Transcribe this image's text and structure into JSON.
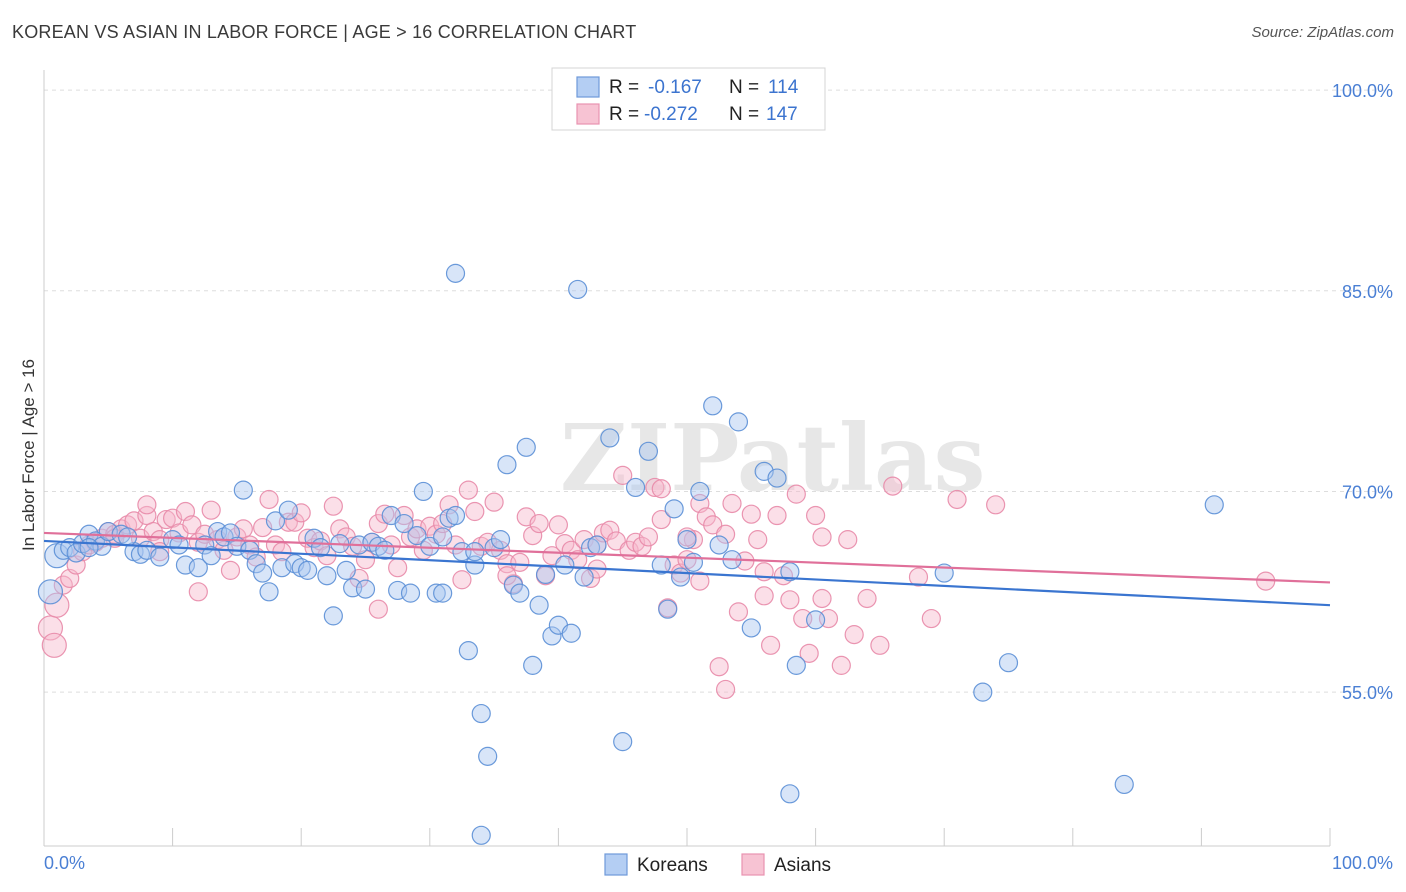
{
  "title": "KOREAN VS ASIAN IN LABOR FORCE | AGE > 16 CORRELATION CHART",
  "source": "Source: ZipAtlas.com",
  "watermark": "ZIPatlas",
  "colors": {
    "koreans_fill": "#a8c6ef",
    "koreans_stroke": "#5b8fd6",
    "koreans_line": "#3a75d0",
    "asians_fill": "#f6b8cb",
    "asians_stroke": "#e88aa8",
    "asians_line": "#e0709a",
    "axis_text": "#4a7fd4",
    "grid": "#dddddd"
  },
  "legend": {
    "rows": [
      {
        "r_label": "R =",
        "r_value": "-0.167",
        "n_label": "N =",
        "n_value": "114"
      },
      {
        "r_label": "R =",
        "r_value": "-0.272",
        "n_label": "N =",
        "n_value": "147"
      }
    ]
  },
  "bottom_legend": [
    "Koreans",
    "Asians"
  ],
  "chart_data": {
    "type": "scatter",
    "ylabel": "In Labor Force | Age > 16",
    "xlim": [
      0,
      100
    ],
    "ylim": [
      43.5,
      101.5
    ],
    "x_tick_labels": [
      "0.0%",
      "100.0%"
    ],
    "y_ticks": [
      55,
      70,
      85,
      100
    ],
    "y_tick_labels": [
      "55.0%",
      "70.0%",
      "85.0%",
      "100.0%"
    ],
    "grid": "horizontal dashed",
    "series": [
      {
        "name": "Koreans",
        "trend": {
          "x": [
            0,
            100
          ],
          "y": [
            66.3,
            61.5
          ]
        },
        "points": [
          [
            1,
            65.2
          ],
          [
            1.5,
            65.6
          ],
          [
            2,
            65.8
          ],
          [
            2.5,
            65.4
          ],
          [
            3,
            66.1
          ],
          [
            3.5,
            66.8
          ],
          [
            4,
            66.3
          ],
          [
            4.5,
            65.9
          ],
          [
            5,
            67
          ],
          [
            6,
            66.8
          ],
          [
            7,
            65.5
          ],
          [
            7.5,
            65.3
          ],
          [
            8,
            65.6
          ],
          [
            9,
            65.1
          ],
          [
            10,
            66.4
          ],
          [
            10.5,
            66
          ],
          [
            11,
            64.5
          ],
          [
            12,
            64.3
          ],
          [
            12.5,
            66
          ],
          [
            13,
            65.2
          ],
          [
            13.5,
            67
          ],
          [
            14,
            66.6
          ],
          [
            14.5,
            66.9
          ],
          [
            15,
            65.9
          ],
          [
            15.5,
            70.1
          ],
          [
            16,
            65.6
          ],
          [
            16.5,
            64.6
          ],
          [
            17,
            63.9
          ],
          [
            17.5,
            62.5
          ],
          [
            18,
            67.8
          ],
          [
            18.5,
            64.3
          ],
          [
            19,
            68.6
          ],
          [
            19.5,
            64.6
          ],
          [
            20,
            64.3
          ],
          [
            20.5,
            64.1
          ],
          [
            21,
            66.5
          ],
          [
            21.5,
            65.8
          ],
          [
            22,
            63.7
          ],
          [
            22.5,
            60.7
          ],
          [
            23,
            66.1
          ],
          [
            23.5,
            64.1
          ],
          [
            24,
            62.8
          ],
          [
            24.5,
            66
          ],
          [
            25,
            62.7
          ],
          [
            25.5,
            66.2
          ],
          [
            26,
            65.9
          ],
          [
            26.5,
            65.6
          ],
          [
            27,
            68.2
          ],
          [
            27.5,
            62.6
          ],
          [
            28,
            67.6
          ],
          [
            28.5,
            62.4
          ],
          [
            29,
            66.7
          ],
          [
            29.5,
            70
          ],
          [
            30,
            65.9
          ],
          [
            30.5,
            62.4
          ],
          [
            31,
            66.6
          ],
          [
            31.5,
            68
          ],
          [
            32,
            68.2
          ],
          [
            32.5,
            65.5
          ],
          [
            33,
            58.1
          ],
          [
            33.5,
            64.5
          ],
          [
            34,
            53.4
          ],
          [
            34.5,
            50.2
          ],
          [
            35,
            65.8
          ],
          [
            35.5,
            66.4
          ],
          [
            36,
            72
          ],
          [
            36.5,
            63
          ],
          [
            37,
            62.4
          ],
          [
            37.5,
            73.3
          ],
          [
            38,
            57
          ],
          [
            38.5,
            61.5
          ],
          [
            39,
            63.8
          ],
          [
            39.5,
            59.2
          ],
          [
            40,
            60
          ],
          [
            40.5,
            64.5
          ],
          [
            41,
            59.4
          ],
          [
            41.5,
            85.1
          ],
          [
            42,
            63.6
          ],
          [
            42.5,
            65.8
          ],
          [
            43,
            66
          ],
          [
            45,
            51.3
          ],
          [
            46,
            70.3
          ],
          [
            47,
            73
          ],
          [
            48,
            64.5
          ],
          [
            48.5,
            61.2
          ],
          [
            49,
            68.7
          ],
          [
            49.5,
            63.6
          ],
          [
            50,
            66.4
          ],
          [
            50.5,
            64.7
          ],
          [
            51,
            70
          ],
          [
            52,
            76.4
          ],
          [
            52.5,
            66
          ],
          [
            53.5,
            64.9
          ],
          [
            54,
            75.2
          ],
          [
            55,
            59.8
          ],
          [
            56,
            71.5
          ],
          [
            57,
            71
          ],
          [
            58,
            64
          ],
          [
            58.5,
            57
          ],
          [
            60,
            60.4
          ],
          [
            70,
            63.9
          ],
          [
            73,
            55
          ],
          [
            75,
            57.2
          ],
          [
            84,
            48.1
          ],
          [
            91,
            69
          ],
          [
            32,
            86.3
          ],
          [
            44,
            74
          ],
          [
            31,
            62.4
          ],
          [
            34,
            44.3
          ],
          [
            58,
            47.4
          ],
          [
            0.5,
            62.5
          ],
          [
            3.5,
            65.8
          ],
          [
            6.5,
            66.6
          ],
          [
            33.5,
            65.5
          ]
        ]
      },
      {
        "name": "Asians",
        "trend": {
          "x": [
            0,
            100
          ],
          "y": [
            66.9,
            63.2
          ]
        },
        "points": [
          [
            0.5,
            59.8
          ],
          [
            0.8,
            58.5
          ],
          [
            1,
            61.5
          ],
          [
            1.5,
            63
          ],
          [
            2,
            63.5
          ],
          [
            2.5,
            64.5
          ],
          [
            3,
            65.5
          ],
          [
            3.5,
            66
          ],
          [
            4,
            66.2
          ],
          [
            4.5,
            66.5
          ],
          [
            5,
            67
          ],
          [
            5.5,
            66.8
          ],
          [
            6,
            67.2
          ],
          [
            6.5,
            67.5
          ],
          [
            7,
            67.8
          ],
          [
            7.5,
            66.5
          ],
          [
            8,
            68.2
          ],
          [
            8.5,
            67
          ],
          [
            9,
            66.4
          ],
          [
            9.5,
            67.9
          ],
          [
            10,
            68
          ],
          [
            10.5,
            66.9
          ],
          [
            11,
            68.5
          ],
          [
            11.5,
            67.5
          ],
          [
            12,
            66.2
          ],
          [
            12.5,
            66.8
          ],
          [
            13,
            68.6
          ],
          [
            13.5,
            66.4
          ],
          [
            14,
            65.6
          ],
          [
            14.5,
            64.1
          ],
          [
            15,
            66.6
          ],
          [
            15.5,
            67.2
          ],
          [
            16,
            66
          ],
          [
            16.5,
            65.1
          ],
          [
            17,
            67.3
          ],
          [
            17.5,
            69.4
          ],
          [
            18,
            66
          ],
          [
            18.5,
            65.5
          ],
          [
            19,
            67.7
          ],
          [
            19.5,
            67.7
          ],
          [
            20,
            68.4
          ],
          [
            20.5,
            66.5
          ],
          [
            21,
            65.8
          ],
          [
            21.5,
            66.3
          ],
          [
            22,
            65.2
          ],
          [
            22.5,
            68.9
          ],
          [
            23,
            67.2
          ],
          [
            23.5,
            66.6
          ],
          [
            24,
            65.9
          ],
          [
            24.5,
            63.5
          ],
          [
            25,
            64.9
          ],
          [
            25.5,
            66.2
          ],
          [
            26,
            67.6
          ],
          [
            26.5,
            68.3
          ],
          [
            27,
            66
          ],
          [
            27.5,
            64.3
          ],
          [
            28,
            68.2
          ],
          [
            28.5,
            66.6
          ],
          [
            29,
            67.2
          ],
          [
            29.5,
            65.6
          ],
          [
            30,
            67.4
          ],
          [
            30.5,
            66.8
          ],
          [
            31,
            67.6
          ],
          [
            31.5,
            69
          ],
          [
            32,
            66
          ],
          [
            32.5,
            63.4
          ],
          [
            33,
            70.1
          ],
          [
            33.5,
            68.5
          ],
          [
            34,
            65.9
          ],
          [
            34.5,
            66.2
          ],
          [
            35,
            69.2
          ],
          [
            35.5,
            65.6
          ],
          [
            36,
            64.6
          ],
          [
            36.5,
            63.1
          ],
          [
            37,
            64.7
          ],
          [
            37.5,
            68.1
          ],
          [
            38,
            66.7
          ],
          [
            38.5,
            67.6
          ],
          [
            39,
            63.7
          ],
          [
            39.5,
            65.2
          ],
          [
            40,
            67.5
          ],
          [
            40.5,
            66.1
          ],
          [
            41,
            65.6
          ],
          [
            41.5,
            64.9
          ],
          [
            42,
            66.4
          ],
          [
            42.5,
            63.5
          ],
          [
            43,
            66
          ],
          [
            43.5,
            66.9
          ],
          [
            44,
            67.1
          ],
          [
            44.5,
            66.3
          ],
          [
            45,
            71.2
          ],
          [
            45.5,
            65.6
          ],
          [
            46,
            66.2
          ],
          [
            46.5,
            65.9
          ],
          [
            47,
            66.6
          ],
          [
            47.5,
            70.3
          ],
          [
            48,
            67.9
          ],
          [
            48.5,
            61.3
          ],
          [
            49,
            64.5
          ],
          [
            49.5,
            63.9
          ],
          [
            50,
            64.9
          ],
          [
            50.5,
            66.4
          ],
          [
            51,
            69.1
          ],
          [
            51.5,
            68.1
          ],
          [
            52,
            67.5
          ],
          [
            52.5,
            56.9
          ],
          [
            53,
            66.8
          ],
          [
            53.5,
            69.1
          ],
          [
            54,
            61
          ],
          [
            54.5,
            64.8
          ],
          [
            55,
            68.3
          ],
          [
            55.5,
            66.4
          ],
          [
            56,
            62.2
          ],
          [
            56.5,
            58.5
          ],
          [
            57,
            68.2
          ],
          [
            57.5,
            63.7
          ],
          [
            58,
            61.9
          ],
          [
            58.5,
            69.8
          ],
          [
            59,
            60.5
          ],
          [
            59.5,
            57.9
          ],
          [
            60,
            68.2
          ],
          [
            60.5,
            62
          ],
          [
            61,
            60.5
          ],
          [
            62,
            57
          ],
          [
            62.5,
            66.4
          ],
          [
            63,
            59.3
          ],
          [
            64,
            62
          ],
          [
            65,
            58.5
          ],
          [
            66,
            70.4
          ],
          [
            68,
            63.6
          ],
          [
            69,
            60.5
          ],
          [
            71,
            69.4
          ],
          [
            74,
            69
          ],
          [
            95,
            63.3
          ],
          [
            12,
            62.5
          ],
          [
            5.5,
            66.5
          ],
          [
            8,
            69
          ],
          [
            9,
            65.5
          ],
          [
            26,
            61.2
          ],
          [
            36,
            63.7
          ],
          [
            43,
            64.2
          ],
          [
            48,
            70.2
          ],
          [
            50,
            66.6
          ],
          [
            51,
            63.3
          ],
          [
            53,
            55.2
          ],
          [
            56,
            64
          ],
          [
            60.5,
            66.6
          ]
        ]
      }
    ]
  }
}
